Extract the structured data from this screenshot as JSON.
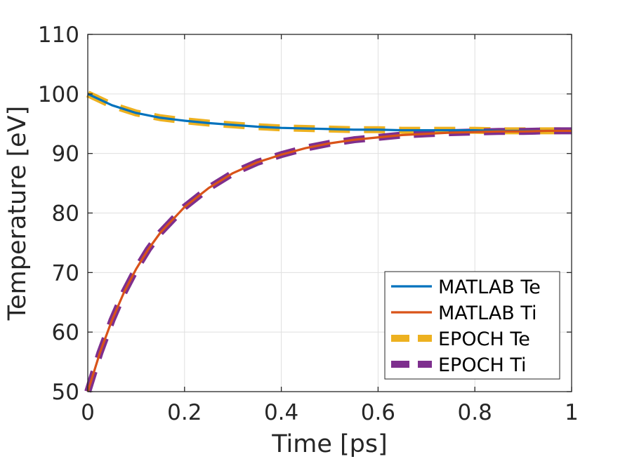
{
  "chart_data": {
    "type": "line",
    "xlabel": "Time [ps]",
    "ylabel": "Temperature [eV]",
    "xlim": [
      0,
      1
    ],
    "ylim": [
      50,
      110
    ],
    "xticks": [
      0,
      0.2,
      0.4,
      0.6,
      0.8,
      1
    ],
    "xtick_labels": [
      "0",
      "0.2",
      "0.4",
      "0.6",
      "0.8",
      "1"
    ],
    "yticks": [
      50,
      60,
      70,
      80,
      90,
      100,
      110
    ],
    "ytick_labels": [
      "50",
      "60",
      "70",
      "80",
      "90",
      "100",
      "110"
    ],
    "grid": true,
    "legend_position": "bottom-right",
    "series": [
      {
        "name": "MATLAB Te",
        "color": "#0072BD",
        "style": "solid",
        "x": [
          0,
          0.05,
          0.1,
          0.15,
          0.2,
          0.25,
          0.3,
          0.35,
          0.4,
          0.45,
          0.5,
          0.55,
          0.6,
          0.65,
          0.7,
          0.75,
          0.8,
          0.85,
          0.9,
          0.95,
          1
        ],
        "y": [
          100,
          98.1,
          96.8,
          96.0,
          95.5,
          95.1,
          94.8,
          94.5,
          94.3,
          94.2,
          94.1,
          94.0,
          94.0,
          93.9,
          93.9,
          93.9,
          93.9,
          93.8,
          93.8,
          93.8,
          93.8
        ]
      },
      {
        "name": "MATLAB Ti",
        "color": "#D95319",
        "style": "solid",
        "x": [
          0,
          0.025,
          0.05,
          0.075,
          0.1,
          0.125,
          0.15,
          0.2,
          0.25,
          0.3,
          0.35,
          0.4,
          0.45,
          0.5,
          0.55,
          0.6,
          0.65,
          0.7,
          0.75,
          0.8,
          0.85,
          0.9,
          0.95,
          1
        ],
        "y": [
          50,
          56.5,
          62.0,
          66.7,
          70.6,
          73.9,
          76.7,
          81.0,
          84.2,
          86.7,
          88.5,
          89.8,
          90.9,
          91.7,
          92.3,
          92.7,
          93.1,
          93.3,
          93.5,
          93.6,
          93.7,
          93.7,
          93.8,
          93.8
        ]
      },
      {
        "name": "EPOCH Te",
        "color": "#EDB120",
        "style": "dashed",
        "x": [
          0,
          0.05,
          0.1,
          0.15,
          0.2,
          0.25,
          0.3,
          0.35,
          0.4,
          0.45,
          0.5,
          0.55,
          0.6,
          0.65,
          0.7,
          0.75,
          0.8,
          0.85,
          0.9,
          0.95,
          1
        ],
        "y": [
          100,
          98.1,
          96.8,
          96.0,
          95.5,
          95.1,
          94.8,
          94.5,
          94.3,
          94.2,
          94.1,
          94.0,
          94.0,
          93.9,
          93.9,
          93.9,
          93.9,
          93.8,
          93.8,
          93.8,
          93.8
        ]
      },
      {
        "name": "EPOCH Ti",
        "color": "#7E2F8E",
        "style": "dashed",
        "x": [
          0,
          0.025,
          0.05,
          0.075,
          0.1,
          0.125,
          0.15,
          0.2,
          0.25,
          0.3,
          0.35,
          0.4,
          0.45,
          0.5,
          0.55,
          0.6,
          0.65,
          0.7,
          0.75,
          0.8,
          0.85,
          0.9,
          0.95,
          1
        ],
        "y": [
          50,
          56.5,
          62.0,
          66.7,
          70.6,
          73.9,
          76.7,
          81.0,
          84.2,
          86.7,
          88.5,
          89.8,
          90.9,
          91.7,
          92.3,
          92.7,
          93.1,
          93.3,
          93.5,
          93.6,
          93.7,
          93.7,
          93.8,
          93.8
        ]
      }
    ]
  }
}
